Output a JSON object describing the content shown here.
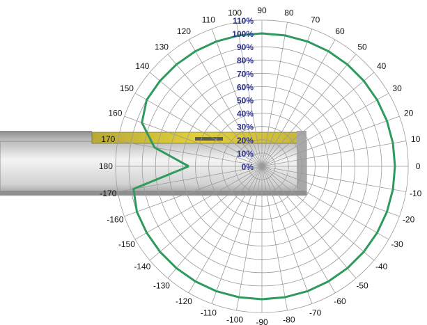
{
  "chart_data": {
    "type": "polar-line",
    "title": "",
    "angle_unit": "degrees",
    "angle_ticks": [
      90,
      80,
      70,
      60,
      50,
      40,
      30,
      20,
      10,
      0,
      -10,
      -20,
      -30,
      -40,
      -50,
      -60,
      -70,
      -80,
      -90,
      -100,
      -110,
      -120,
      -130,
      -140,
      -150,
      -160,
      -170,
      180,
      170,
      160,
      150,
      140,
      130,
      120,
      110,
      100
    ],
    "radial_ticks": [
      "0%",
      "10%",
      "20%",
      "30%",
      "40%",
      "50%",
      "60%",
      "70%",
      "80%",
      "90%",
      "100%",
      "110%"
    ],
    "radial_range": [
      0,
      110
    ],
    "grid": true,
    "colors": {
      "series": "#2e9a5e",
      "grid": "#9a9a9a",
      "radial_labels": "#2b2f8c",
      "angle_labels": "#111111"
    },
    "decoration": "sensor-housing-image",
    "series": [
      {
        "angles": [
          -180,
          -170,
          -160,
          -150,
          -140,
          -130,
          -120,
          -110,
          -100,
          -90,
          -80,
          -70,
          -60,
          -50,
          -40,
          -30,
          -20,
          -10,
          0,
          10,
          20,
          30,
          40,
          50,
          60,
          70,
          80,
          90,
          100,
          110,
          120,
          130,
          140,
          150,
          160,
          170,
          180
        ],
        "values": [
          55,
          98,
          100,
          100,
          100,
          100,
          100,
          100,
          100,
          100,
          100,
          100,
          100,
          100,
          100,
          100,
          100,
          100,
          100,
          100,
          100,
          100,
          100,
          100,
          100,
          100,
          100,
          100,
          100,
          100,
          100,
          100,
          100,
          100,
          96,
          82,
          55
        ]
      }
    ]
  }
}
